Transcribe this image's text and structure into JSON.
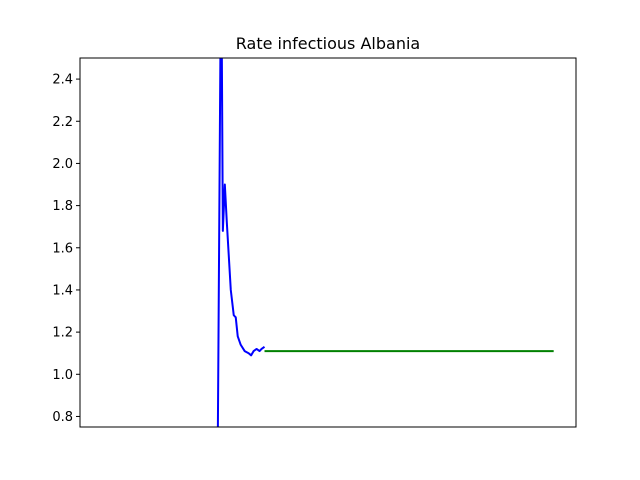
{
  "chart_data": {
    "type": "line",
    "title": "Rate infectious Albania",
    "xlabel": "",
    "ylabel": "",
    "xlim": [
      0,
      100
    ],
    "ylim": [
      0.75,
      2.5
    ],
    "yticks": [
      0.8,
      1.0,
      1.2,
      1.4,
      1.6,
      1.8,
      2.0,
      2.2,
      2.4
    ],
    "ytick_labels": [
      "0.8",
      "1.0",
      "1.2",
      "1.4",
      "1.6",
      "1.8",
      "2.0",
      "2.2",
      "2.4"
    ],
    "x_ticks_visible": false,
    "grid": false,
    "legend": "none",
    "series": [
      {
        "color": "#0000ff",
        "x": [
          27.8,
          28.3,
          28.6,
          28.8,
          29.2,
          29.6,
          30.4,
          31.0,
          31.4,
          31.8,
          32.4,
          33.2,
          34.0,
          34.5,
          35.0,
          35.6,
          36.2,
          36.6,
          37.2
        ],
        "y": [
          0.75,
          2.5,
          2.5,
          1.68,
          1.9,
          1.72,
          1.4,
          1.28,
          1.27,
          1.18,
          1.14,
          1.11,
          1.1,
          1.09,
          1.11,
          1.12,
          1.11,
          1.12,
          1.13
        ]
      },
      {
        "color": "#008000",
        "x": [
          37.2,
          95.5
        ],
        "y": [
          1.11,
          1.11
        ]
      }
    ]
  }
}
